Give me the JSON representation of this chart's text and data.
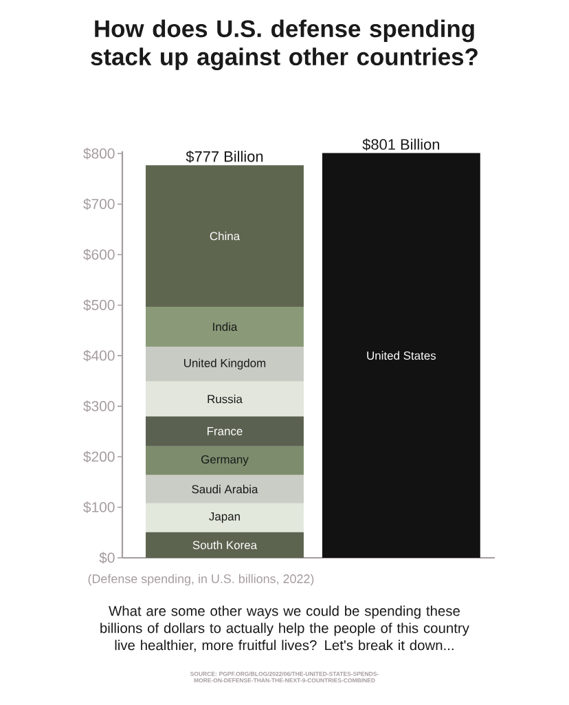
{
  "chart_data": {
    "type": "bar",
    "title": "How does U.S. defense spending stack up against other countries?",
    "xlabel": "(Defense spending, in U.S. billions, 2022)",
    "annotations": [
      "What are some other ways we could be spending these billions of dollars to actually help the people of this country live healthier, more fruitful lives? Let's break it down...",
      "SOURCE: PGPF.ORG/BLOG/2022/06/THE-UNITED-STATES-SPENDS-MORE-ON-DEFENSE-THAN-THE-NEXT-9-COUNTRIES-COMBINED"
    ],
    "categories": [
      null,
      null
    ],
    "stacked": true,
    "series": [
      {
        "name": "South Korea",
        "color": "#5c634f",
        "values": [
          51,
          null
        ]
      },
      {
        "name": "Japan",
        "color": "#e3e8dd",
        "values": [
          57,
          null
        ]
      },
      {
        "name": "Saudi Arabia",
        "color": "#cacdc6",
        "values": [
          56,
          null
        ]
      },
      {
        "name": "Germany",
        "color": "#7d8c6c",
        "values": [
          57,
          null
        ]
      },
      {
        "name": "France",
        "color": "#5a6150",
        "values": [
          59,
          null
        ]
      },
      {
        "name": "Russia",
        "color": "#e2e6dc",
        "values": [
          69,
          null
        ]
      },
      {
        "name": "United Kingdom",
        "color": "#c8cbc4",
        "values": [
          69,
          null
        ]
      },
      {
        "name": "India",
        "color": "#8a9a78",
        "values": [
          79,
          null
        ]
      },
      {
        "name": "China",
        "color": "#5e6650",
        "values": [
          280,
          null
        ]
      },
      {
        "name": "United States",
        "color": "#121212",
        "values": [
          null,
          801
        ]
      }
    ],
    "totals": [
      "$777 Billion",
      "$801 Billion"
    ],
    "ylim": [
      0,
      805
    ],
    "yticks": [
      {
        "value": 0,
        "label": "$0"
      },
      {
        "value": 100,
        "label": "$100"
      },
      {
        "value": 200,
        "label": "$200"
      },
      {
        "value": 300,
        "label": "$300"
      },
      {
        "value": 400,
        "label": "$400"
      },
      {
        "value": 500,
        "label": "$500"
      },
      {
        "value": 600,
        "label": "$600"
      },
      {
        "value": 700,
        "label": "$700"
      },
      {
        "value": 800,
        "label": "$800"
      }
    ],
    "tick_labels": "y"
  }
}
